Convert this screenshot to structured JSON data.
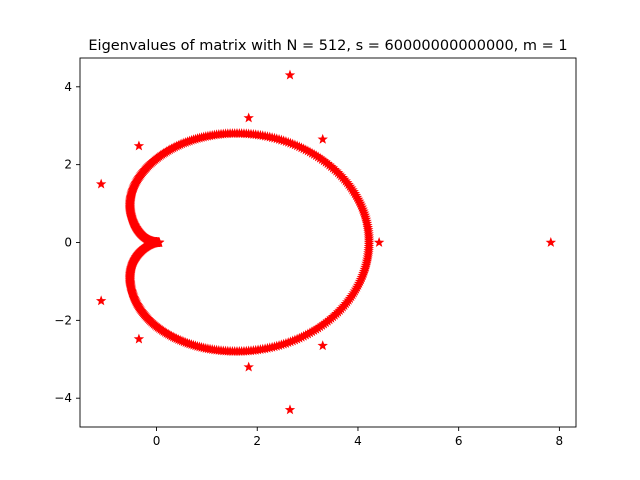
{
  "chart_data": {
    "type": "scatter",
    "title": "Eigenvalues of matrix with N = 512, s = 60000000000000, m = 1",
    "xlabel": "",
    "ylabel": "",
    "xlim": [
      -1.52,
      8.33
    ],
    "ylim": [
      -4.74,
      4.74
    ],
    "xticks": [
      0,
      2,
      4,
      6,
      8
    ],
    "xtick_labels": [
      "0",
      "2",
      "4",
      "6",
      "8"
    ],
    "yticks": [
      -4,
      -2,
      0,
      2,
      4
    ],
    "ytick_labels": [
      "−4",
      "−2",
      "0",
      "2",
      "4"
    ],
    "grid": false,
    "marker": "star",
    "color": "#ff0000",
    "series": [
      {
        "description_points": "dense cardioid-shaped curve of eigenvalues",
        "curve": {
          "shape": "cardioid",
          "cusp": [
            0,
            0
          ],
          "rightmost": [
            4.22,
            0
          ],
          "top": [
            1.5,
            2.8
          ],
          "bottom": [
            1.5,
            -2.8
          ],
          "leftmost_lobe_x": -0.6,
          "point_count": 500
        },
        "points": [
          [
            7.83,
            0
          ],
          [
            4.42,
            0
          ],
          [
            2.65,
            4.3
          ],
          [
            2.65,
            -4.3
          ],
          [
            1.83,
            3.2
          ],
          [
            1.83,
            -3.2
          ],
          [
            3.3,
            2.65
          ],
          [
            3.3,
            -2.65
          ],
          [
            -0.35,
            2.48
          ],
          [
            -0.35,
            -2.48
          ],
          [
            -1.1,
            1.5
          ],
          [
            -1.1,
            -1.5
          ]
        ]
      }
    ]
  }
}
